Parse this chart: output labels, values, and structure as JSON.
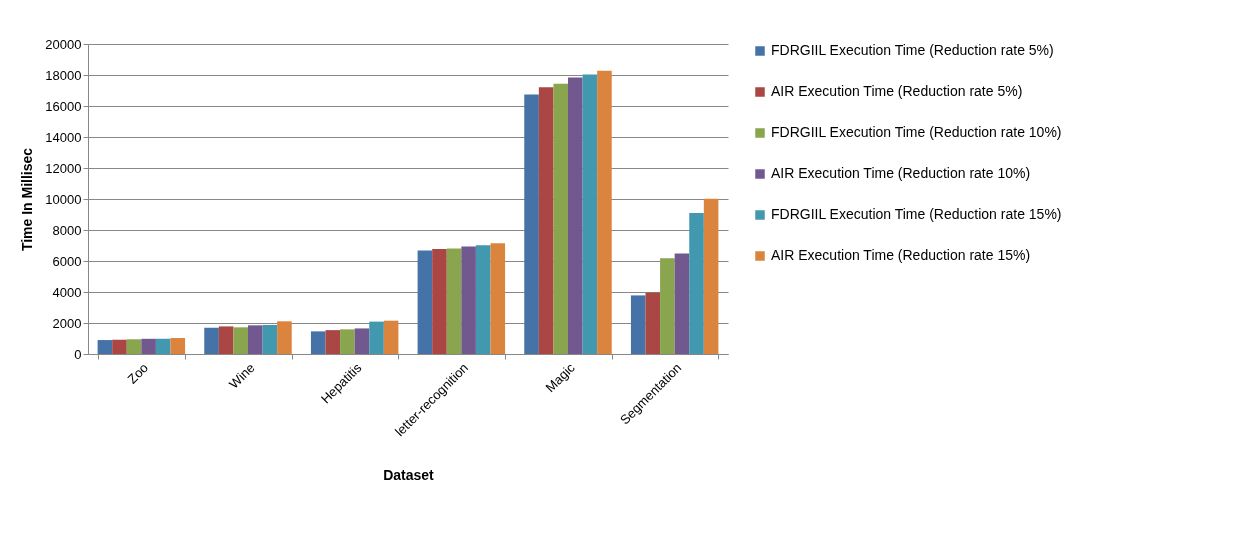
{
  "chart_data": {
    "type": "bar",
    "xlabel": "Dataset",
    "ylabel": "Time In Millisec",
    "categories": [
      "Zoo",
      "Wine",
      "Hepatitis",
      "letter-recognition",
      "Magic",
      "Segmentation"
    ],
    "series": [
      {
        "name": "FDRGIIL Execution Time (Reduction rate 5%)",
        "color": "#4572a7",
        "values": [
          900,
          1700,
          1460,
          6680,
          16740,
          3780
        ]
      },
      {
        "name": "AIR Execution Time  (Reduction rate 5%)",
        "color": "#aa4643",
        "values": [
          920,
          1780,
          1540,
          6770,
          17210,
          3960
        ]
      },
      {
        "name": "FDRGIIL Execution Time (Reduction rate 10%)",
        "color": "#89a54e",
        "values": [
          950,
          1720,
          1590,
          6810,
          17430,
          6180
        ]
      },
      {
        "name": "AIR Execution Time  (Reduction rate 10%)",
        "color": "#71588f",
        "values": [
          980,
          1850,
          1650,
          6940,
          17840,
          6490
        ]
      },
      {
        "name": "FDRGIIL Execution Time (Reduction rate 15%)",
        "color": "#4198af",
        "values": [
          980,
          1870,
          2090,
          7010,
          18030,
          9100
        ]
      },
      {
        "name": "AIR Execution Time  (Reduction rate 15%)",
        "color": "#db843d",
        "values": [
          1030,
          2110,
          2150,
          7140,
          18270,
          10010
        ]
      }
    ],
    "ylim": [
      0,
      20000
    ],
    "yticks": [
      0,
      2000,
      4000,
      6000,
      8000,
      10000,
      12000,
      14000,
      16000,
      18000,
      20000
    ],
    "grid": "y",
    "legend": "right"
  }
}
